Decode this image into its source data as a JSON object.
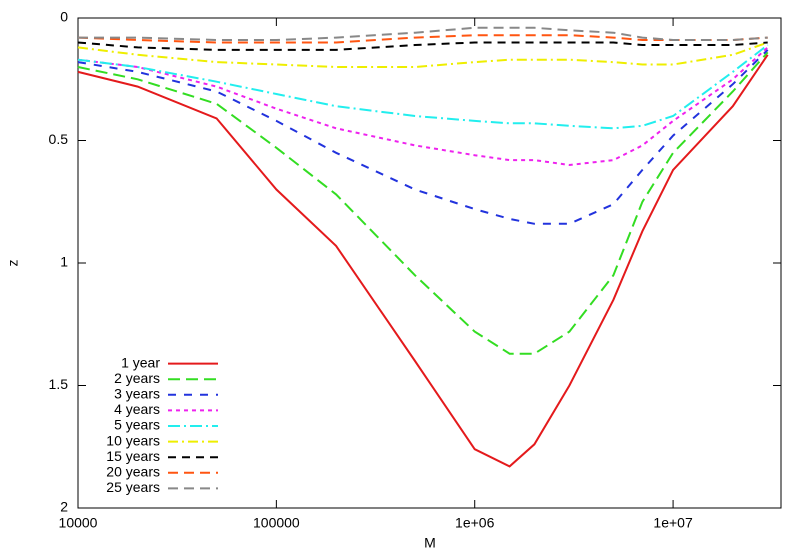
{
  "chart_data": {
    "type": "line",
    "x_label": "M",
    "y_label": "z",
    "x": [
      10000,
      20000,
      50000,
      100000,
      200000,
      500000,
      1000000,
      1500000,
      2000000,
      3000000,
      5000000,
      7000000,
      10000000,
      20000000,
      30000000
    ],
    "xlim": [
      10000,
      35000000
    ],
    "x_log": true,
    "xticks": [
      10000,
      100000,
      {
        "value": 1000000,
        "label": "1e+06"
      },
      {
        "value": 10000000,
        "label": "1e+07"
      }
    ],
    "ylim": [
      0,
      2
    ],
    "y_inverted": true,
    "yticks": [
      0,
      0.5,
      1,
      1.5,
      2
    ],
    "legend": "lower left",
    "series": [
      {
        "name": "1 year",
        "color": "#e41a1c",
        "values": [
          0.22,
          0.28,
          0.41,
          0.7,
          0.93,
          1.4,
          1.76,
          1.83,
          1.74,
          1.5,
          1.15,
          0.87,
          0.62,
          0.36,
          0.15
        ]
      },
      {
        "name": "2 years",
        "color": "#33dd22",
        "values": [
          0.2,
          0.25,
          0.35,
          0.53,
          0.72,
          1.05,
          1.28,
          1.37,
          1.37,
          1.28,
          1.05,
          0.75,
          0.55,
          0.3,
          0.14
        ]
      },
      {
        "name": "3 years",
        "color": "#2233dd",
        "values": [
          0.18,
          0.22,
          0.3,
          0.42,
          0.55,
          0.7,
          0.78,
          0.82,
          0.84,
          0.84,
          0.76,
          0.62,
          0.48,
          0.27,
          0.13
        ]
      },
      {
        "name": "4 years",
        "color": "#ee22ee",
        "values": [
          0.17,
          0.2,
          0.28,
          0.37,
          0.45,
          0.52,
          0.56,
          0.58,
          0.58,
          0.6,
          0.58,
          0.52,
          0.42,
          0.25,
          0.12
        ]
      },
      {
        "name": "5 years",
        "color": "#22eeee",
        "values": [
          0.17,
          0.2,
          0.26,
          0.31,
          0.36,
          0.4,
          0.42,
          0.43,
          0.43,
          0.44,
          0.45,
          0.44,
          0.4,
          0.22,
          0.11
        ]
      },
      {
        "name": "10 years",
        "color": "#eeee00",
        "values": [
          0.12,
          0.15,
          0.18,
          0.19,
          0.2,
          0.2,
          0.18,
          0.17,
          0.17,
          0.17,
          0.18,
          0.19,
          0.19,
          0.15,
          0.1
        ]
      },
      {
        "name": "15 years",
        "color": "#000000",
        "values": [
          0.1,
          0.12,
          0.13,
          0.13,
          0.13,
          0.11,
          0.1,
          0.1,
          0.1,
          0.1,
          0.1,
          0.11,
          0.11,
          0.11,
          0.1
        ]
      },
      {
        "name": "20 years",
        "color": "#ff5511",
        "values": [
          0.08,
          0.09,
          0.1,
          0.1,
          0.1,
          0.08,
          0.07,
          0.07,
          0.07,
          0.07,
          0.08,
          0.09,
          0.09,
          0.09,
          0.08
        ]
      },
      {
        "name": "25 years",
        "color": "#888888",
        "values": [
          0.08,
          0.08,
          0.09,
          0.09,
          0.08,
          0.06,
          0.04,
          0.04,
          0.04,
          0.05,
          0.06,
          0.08,
          0.09,
          0.09,
          0.08
        ]
      }
    ]
  }
}
